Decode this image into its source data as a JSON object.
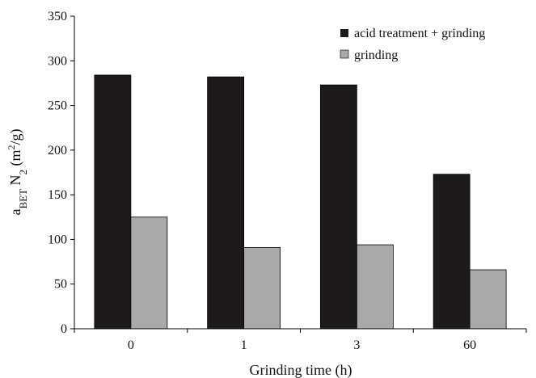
{
  "chart_data": {
    "type": "bar",
    "categories": [
      "0",
      "1",
      "3",
      "60"
    ],
    "series": [
      {
        "name": "acid treatment + grinding",
        "values": [
          284,
          282,
          273,
          173
        ],
        "color": "#1e1a1a"
      },
      {
        "name": "grinding",
        "values": [
          125,
          91,
          94,
          66
        ],
        "color": "#a9a9a9"
      }
    ],
    "xlabel": "Grinding time (h)",
    "ylabel": {
      "base": "a",
      "sub": "BET",
      "mid": " N",
      "sub2": "2",
      "unit_open": " (m",
      "sup": "2",
      "unit_close": "/g)"
    },
    "ylim": [
      0,
      350
    ],
    "yticks": [
      0,
      50,
      100,
      150,
      200,
      250,
      300,
      350
    ],
    "grid": false,
    "legend": "top-right"
  }
}
